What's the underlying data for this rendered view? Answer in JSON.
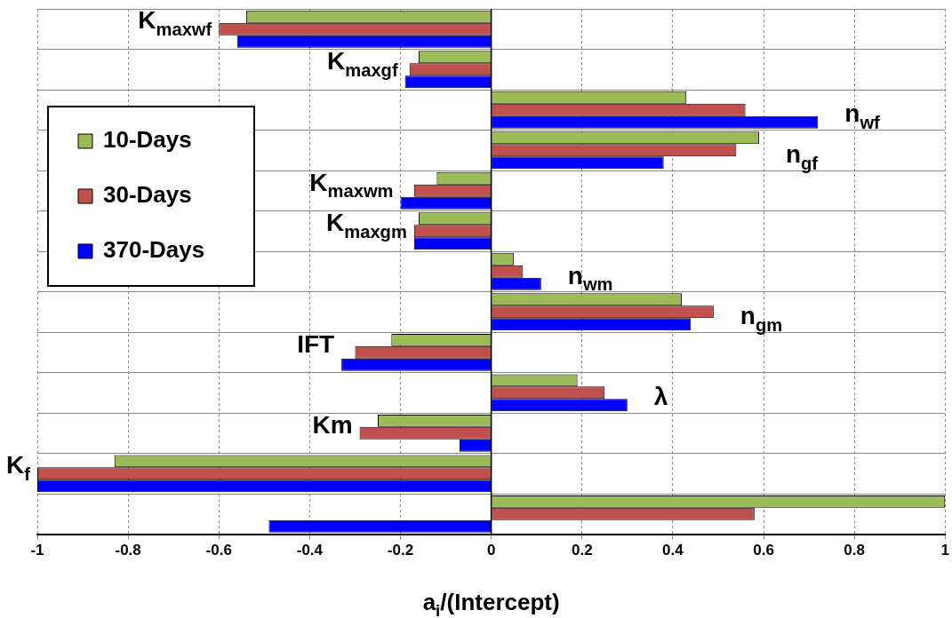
{
  "chart_data": {
    "type": "bar",
    "orientation": "horizontal",
    "xlabel": "a$_{i}$/(Intercept)",
    "categories": [
      "K$_{maxwf}$",
      "K$_{maxgf}$",
      "n$_{wf}$",
      "n$_{gf}$",
      "K$_{maxwm}$",
      "K$_{maxgm}$",
      "n$_{wm}$",
      "n$_{gm}$",
      "IFT",
      "λ",
      "Km",
      "K$_{f}$",
      null
    ],
    "series": [
      {
        "name": "10-Days",
        "color": "#9bbb59",
        "values": [
          -0.54,
          -0.16,
          0.43,
          0.59,
          -0.12,
          -0.16,
          0.05,
          0.42,
          -0.22,
          0.19,
          -0.25,
          -0.83,
          1
        ]
      },
      {
        "name": "30-Days",
        "color": "#c0504d",
        "values": [
          -0.6,
          -0.18,
          0.56,
          0.54,
          -0.17,
          -0.17,
          0.07,
          0.49,
          -0.3,
          0.25,
          -0.29,
          -1,
          0.58
        ]
      },
      {
        "name": "370-Days",
        "color": "#0000ff",
        "values": [
          -0.56,
          -0.19,
          0.72,
          0.38,
          -0.2,
          -0.17,
          0.11,
          0.44,
          -0.33,
          0.3,
          -0.07,
          -1,
          -0.49
        ]
      }
    ],
    "xlim": [
      -1,
      1
    ],
    "xticks": [
      -1,
      -0.8,
      -0.6,
      -0.4,
      -0.2,
      0,
      0.2,
      0.4,
      0.6,
      0.8,
      1
    ],
    "grid": true,
    "legend": "top left"
  }
}
